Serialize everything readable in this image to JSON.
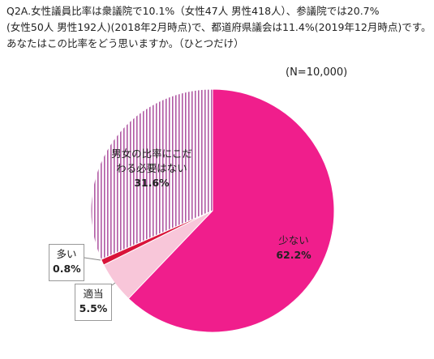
{
  "question": {
    "line1": "Q2A.女性議員比率は衆議院で10.1%（女性47人 男性418人）、参議院では20.7%",
    "line2": "(女性50人 男性192人)(2018年2月時点)で、都道府県議会は11.4%(2019年12月時点)です。",
    "line3": "あなたはこの比率をどう思いますか。（ひとつだけ）"
  },
  "sample_size": "(N=10,000)",
  "chart_data": {
    "type": "pie",
    "start_angle_deg": 0,
    "direction": "clockwise",
    "slices": [
      {
        "label": "少ない",
        "value": 62.2,
        "value_label": "62.2%",
        "color": "#f01e8c",
        "pattern": "solid"
      },
      {
        "label": "適当",
        "value": 5.5,
        "value_label": "5.5%",
        "color": "#f8c6d9",
        "pattern": "solid"
      },
      {
        "label": "多い",
        "value": 0.8,
        "value_label": "0.8%",
        "color": "#d9143a",
        "pattern": "solid"
      },
      {
        "label": "男女の比率にこだわる必要はない",
        "label_lines": [
          "男女の比率にこだ",
          "わる必要はない"
        ],
        "value": 31.6,
        "value_label": "31.6%",
        "color": "#b15aa4",
        "pattern": "vertical-stripes"
      }
    ]
  }
}
